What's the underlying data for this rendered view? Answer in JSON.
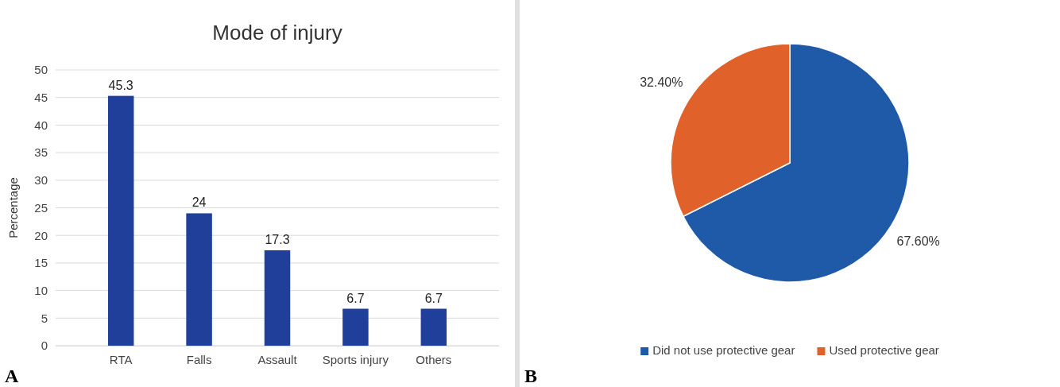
{
  "chart_data": [
    {
      "type": "bar",
      "title": "Mode of injury",
      "ylabel": "Percentage",
      "categories": [
        "RTA",
        "Falls",
        "Assault",
        "Sports injury",
        "Others"
      ],
      "values": [
        45.3,
        24,
        17.3,
        6.7,
        6.7
      ],
      "color": "#1f3f9a",
      "ylim": [
        0,
        50
      ],
      "yticks": [
        0,
        5,
        10,
        15,
        20,
        25,
        30,
        35,
        40,
        45,
        50
      ],
      "grid": "y",
      "data_labels": true,
      "annotations": [
        "A"
      ]
    },
    {
      "type": "pie",
      "categories": [
        "Did not use protective gear",
        "Used protective gear"
      ],
      "values": [
        67.6,
        32.4
      ],
      "value_labels": [
        "67.60%",
        "32.40%"
      ],
      "colors": [
        "#1f5aa8",
        "#e0622a"
      ],
      "legend": "bottom",
      "annotations": [
        "B"
      ]
    }
  ]
}
